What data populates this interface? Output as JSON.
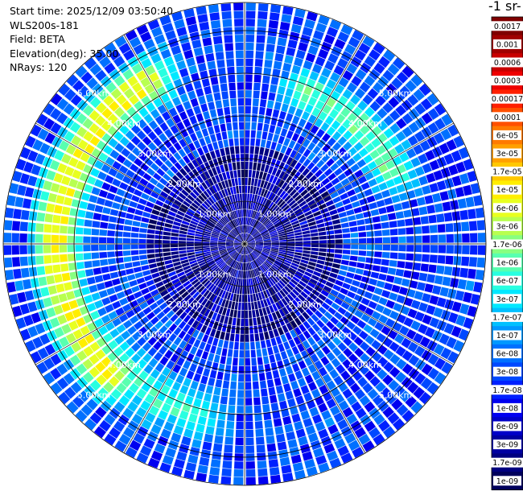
{
  "info": {
    "start_time": "Start time: 2025/12/09 03:50:40",
    "instrument": "WLS200s-181",
    "field": "Field: BETA",
    "elevation": "Elevation(deg): 35.00",
    "nrays": "NRays: 120"
  },
  "colorbar": {
    "title": "-1 sr-",
    "labels": [
      "0.0017",
      "0.001",
      "0.0006",
      "0.0003",
      "0.00017",
      "0.0001",
      "6e-05",
      "3e-05",
      "1.7e-05",
      "1e-05",
      "6e-06",
      "3e-06",
      "1.7e-06",
      "1e-06",
      "6e-07",
      "3e-07",
      "1.7e-07",
      "1e-07",
      "6e-08",
      "3e-08",
      "1.7e-08",
      "1e-08",
      "6e-09",
      "3e-09",
      "1.7e-09",
      "1e-09"
    ],
    "colors": [
      "#7f0000",
      "#a00000",
      "#c80000",
      "#ee0000",
      "#ff2000",
      "#ff5000",
      "#ff7a00",
      "#ffa000",
      "#ffc800",
      "#ffee00",
      "#e8ff20",
      "#b8ff50",
      "#88ff80",
      "#58ffb0",
      "#28ffe0",
      "#00e8ff",
      "#00c0ff",
      "#0098ff",
      "#0070ff",
      "#0048ff",
      "#0020ff",
      "#0000f0",
      "#0000c8",
      "#0000a0",
      "#000080",
      "#00005c"
    ]
  },
  "chart_data": {
    "type": "heatmap",
    "projection": "polar (PPI)",
    "field": "BETA",
    "n_rays": 120,
    "elevation_deg": 35.0,
    "range_ring_labels": [
      "1.00km",
      "2.00km",
      "3.00km",
      "4.00km",
      "5.00km"
    ],
    "color_scale": "log",
    "value_range": [
      1e-09,
      0.0017
    ],
    "background_level": 3e-08,
    "features": [
      {
        "description": "enhanced backscatter arc (west)",
        "azimuth_deg": [
          225,
          330
        ],
        "range_km": [
          4.0,
          4.8
        ],
        "peak_value": 1e-05
      },
      {
        "description": "enhanced arc (north-east)",
        "azimuth_deg": [
          20,
          65
        ],
        "range_km": [
          3.5,
          4.2
        ],
        "peak_value": 1.7e-06
      },
      {
        "description": "enhanced arc (south-west)",
        "azimuth_deg": [
          195,
          235
        ],
        "range_km": [
          3.7,
          4.6
        ],
        "peak_value": 1e-06
      }
    ]
  }
}
